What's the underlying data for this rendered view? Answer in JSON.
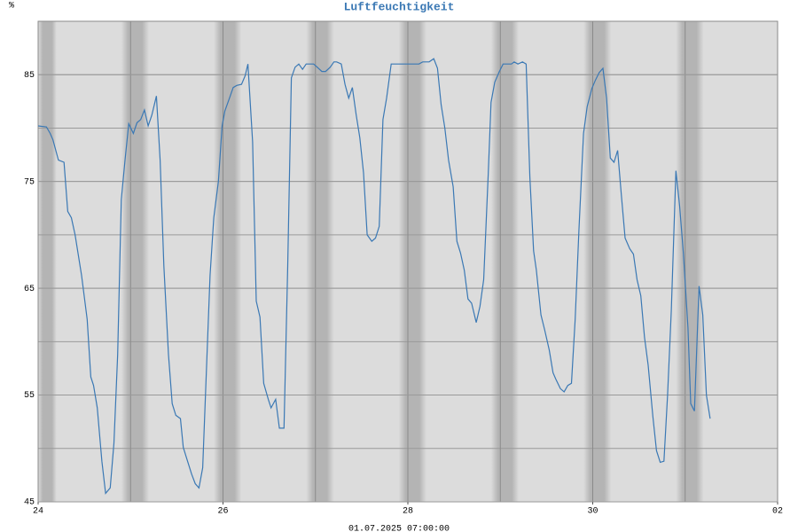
{
  "chart_data": {
    "type": "line",
    "title": "Luftfeuchtigkeit",
    "y_unit": "%",
    "footer": "01.07.2025 07:00:00",
    "xlim": [
      0,
      8
    ],
    "xticks": [
      {
        "value": 0,
        "label": "24"
      },
      {
        "value": 2,
        "label": "26"
      },
      {
        "value": 4,
        "label": "28"
      },
      {
        "value": 6,
        "label": "30"
      },
      {
        "value": 8,
        "label": "02"
      }
    ],
    "x_gridlines": [
      1,
      2,
      3,
      4,
      5,
      6,
      7
    ],
    "ylim": [
      45,
      90
    ],
    "yticks": [
      45,
      55,
      65,
      75,
      85
    ],
    "y_gridlines": [
      50,
      55,
      60,
      65,
      70,
      75,
      80,
      85
    ],
    "grid": true,
    "series": [
      {
        "name": "Luftfeuchtigkeit",
        "color": "#3a78b4",
        "x": [
          0,
          0.09,
          0.13,
          0.16,
          0.22,
          0.28,
          0.32,
          0.36,
          0.4,
          0.47,
          0.53,
          0.57,
          0.6,
          0.64,
          0.69,
          0.73,
          0.78,
          0.82,
          0.86,
          0.9,
          0.94,
          0.98,
          1.03,
          1.07,
          1.11,
          1.15,
          1.19,
          1.23,
          1.28,
          1.32,
          1.36,
          1.41,
          1.45,
          1.49,
          1.54,
          1.57,
          1.61,
          1.66,
          1.7,
          1.74,
          1.78,
          1.82,
          1.86,
          1.9,
          1.95,
          1.99,
          2.02,
          2.07,
          2.11,
          2.15,
          2.2,
          2.24,
          2.27,
          2.32,
          2.36,
          2.4,
          2.44,
          2.49,
          2.52,
          2.57,
          2.61,
          2.66,
          2.7,
          2.74,
          2.78,
          2.82,
          2.86,
          2.9,
          2.95,
          2.98,
          3.02,
          3.07,
          3.11,
          3.16,
          3.2,
          3.23,
          3.28,
          3.32,
          3.36,
          3.4,
          3.44,
          3.48,
          3.52,
          3.56,
          3.61,
          3.65,
          3.69,
          3.73,
          3.77,
          3.82,
          3.86,
          3.9,
          3.94,
          3.98,
          4.03,
          4.07,
          4.12,
          4.16,
          4.19,
          4.23,
          4.28,
          4.32,
          4.36,
          4.4,
          4.44,
          4.49,
          4.53,
          4.57,
          4.61,
          4.65,
          4.69,
          4.74,
          4.78,
          4.82,
          4.87,
          4.9,
          4.94,
          4.99,
          5.03,
          5.07,
          5.12,
          5.15,
          5.19,
          5.24,
          5.28,
          5.32,
          5.36,
          5.39,
          5.44,
          5.48,
          5.53,
          5.57,
          5.6,
          5.65,
          5.69,
          5.73,
          5.77,
          5.81,
          5.85,
          5.9,
          5.94,
          5.99,
          6.03,
          6.07,
          6.11,
          6.15,
          6.19,
          6.23,
          6.27,
          6.31,
          6.35,
          6.4,
          6.44,
          6.48,
          6.52,
          6.56,
          6.6,
          6.65,
          6.69,
          6.73,
          6.77,
          6.81,
          6.85,
          6.9,
          6.94,
          6.98,
          7.03,
          7.06,
          7.1,
          7.15,
          7.19,
          7.23,
          7.27
        ],
        "values": [
          80.2,
          80.1,
          79.5,
          78.9,
          77.0,
          76.8,
          72.2,
          71.6,
          70.0,
          66.2,
          62.1,
          56.7,
          55.9,
          53.8,
          48.8,
          45.8,
          46.3,
          50.5,
          58.8,
          73.3,
          77.0,
          80.4,
          79.5,
          80.5,
          80.8,
          81.7,
          80.2,
          81.2,
          83.0,
          77.0,
          67.1,
          58.8,
          54.2,
          53.1,
          52.8,
          50.1,
          49.0,
          47.6,
          46.7,
          46.3,
          48.2,
          57.1,
          66.2,
          71.6,
          75.0,
          80.2,
          81.6,
          82.8,
          83.8,
          84.0,
          84.1,
          84.9,
          86.0,
          78.7,
          63.8,
          62.3,
          56.1,
          54.6,
          53.8,
          54.6,
          51.9,
          51.9,
          67.1,
          84.7,
          85.7,
          86.0,
          85.5,
          86.0,
          86.0,
          86.0,
          85.7,
          85.3,
          85.3,
          85.7,
          86.2,
          86.2,
          86.0,
          84.1,
          82.8,
          83.8,
          81.3,
          79.1,
          75.8,
          70.0,
          69.4,
          69.7,
          70.8,
          80.8,
          82.8,
          86.0,
          86.0,
          86.0,
          86.0,
          86.0,
          86.0,
          86.0,
          86.0,
          86.2,
          86.2,
          86.2,
          86.5,
          85.6,
          82.2,
          80.0,
          77.0,
          74.5,
          69.4,
          68.3,
          66.7,
          64.0,
          63.6,
          61.8,
          63.3,
          65.8,
          75.8,
          82.4,
          84.3,
          85.3,
          86.0,
          86.0,
          86.0,
          86.2,
          86.0,
          86.2,
          86.0,
          75.4,
          68.5,
          66.7,
          62.5,
          61.1,
          59.2,
          57.1,
          56.5,
          55.6,
          55.3,
          55.9,
          56.1,
          62.1,
          70.4,
          79.5,
          82.0,
          83.7,
          84.5,
          85.2,
          85.6,
          82.8,
          77.2,
          76.8,
          77.9,
          73.7,
          69.7,
          68.7,
          68.2,
          65.8,
          64.3,
          60.4,
          57.8,
          53.0,
          49.8,
          48.7,
          48.8,
          55.0,
          62.9,
          76.0,
          72.7,
          68.3,
          61.3,
          54.2,
          53.5,
          65.2,
          62.5,
          55.0,
          52.8
        ]
      }
    ]
  }
}
